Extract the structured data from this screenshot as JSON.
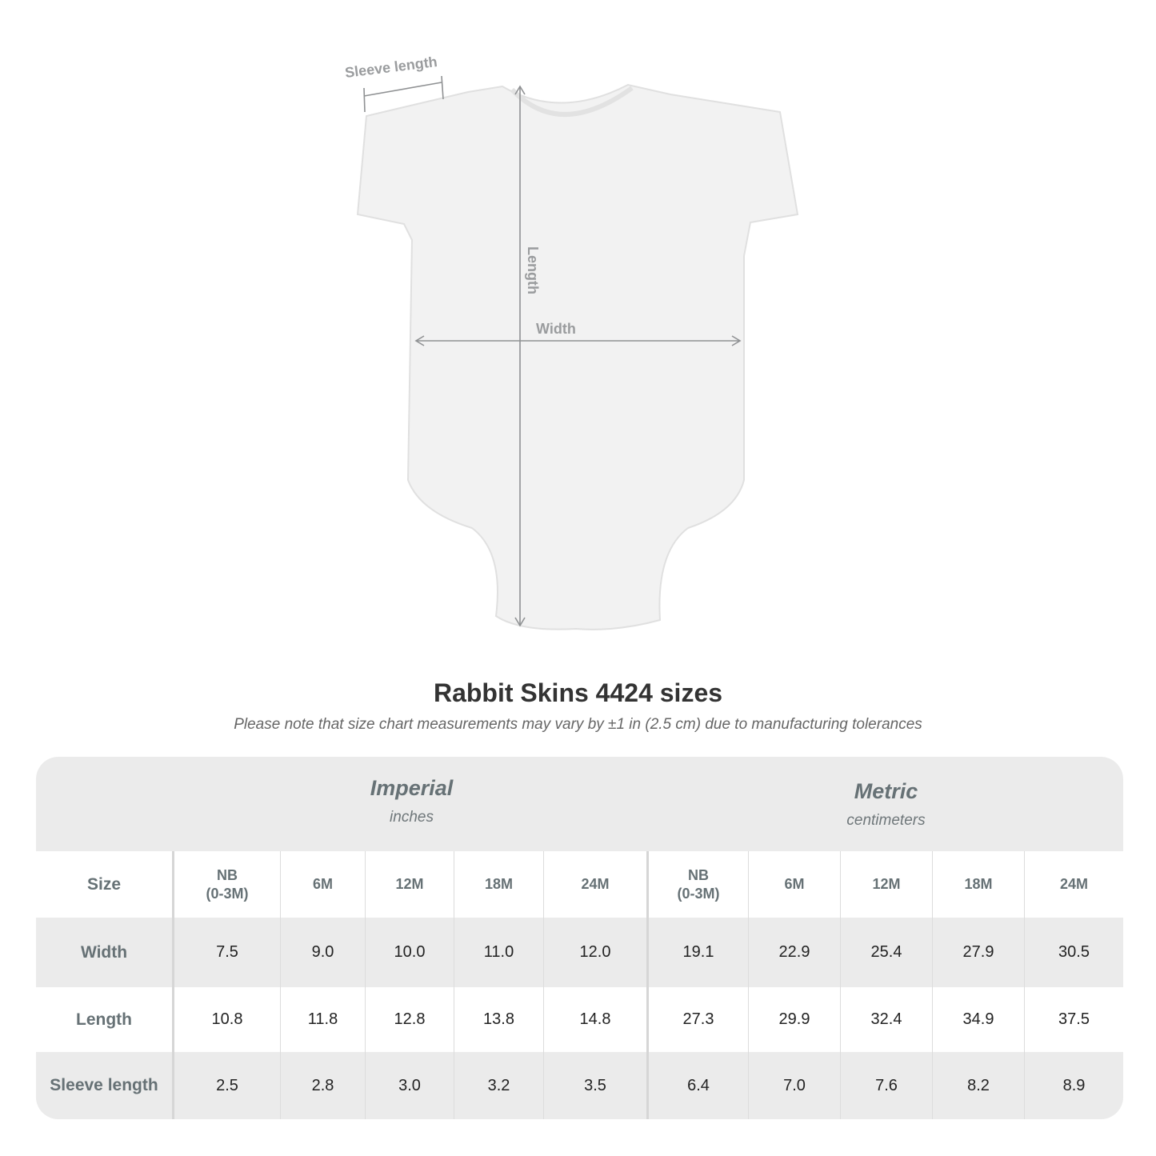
{
  "diagram": {
    "labels": {
      "sleeve_length": "Sleeve length",
      "length": "Length",
      "width": "Width"
    }
  },
  "title": "Rabbit Skins 4424 sizes",
  "note": "Please note that size chart measurements may vary by ±1 in (2.5 cm) due to manufacturing tolerances",
  "table": {
    "imperial": {
      "label": "Imperial",
      "unit": "inches"
    },
    "metric": {
      "label": "Metric",
      "unit": "centimeters"
    },
    "size_label": "Size",
    "sizes": [
      "NB\n(0-3M)",
      "6M",
      "12M",
      "18M",
      "24M",
      "NB\n(0-3M)",
      "6M",
      "12M",
      "18M",
      "24M"
    ],
    "rows": [
      {
        "label": "Width",
        "values": [
          "7.5",
          "9.0",
          "10.0",
          "11.0",
          "12.0",
          "19.1",
          "22.9",
          "25.4",
          "27.9",
          "30.5"
        ]
      },
      {
        "label": "Length",
        "values": [
          "10.8",
          "11.8",
          "12.8",
          "13.8",
          "14.8",
          "27.3",
          "29.9",
          "32.4",
          "34.9",
          "37.5"
        ]
      },
      {
        "label": "Sleeve length",
        "values": [
          "2.5",
          "2.8",
          "3.0",
          "3.2",
          "3.5",
          "6.4",
          "7.0",
          "7.6",
          "8.2",
          "8.9"
        ]
      }
    ]
  }
}
